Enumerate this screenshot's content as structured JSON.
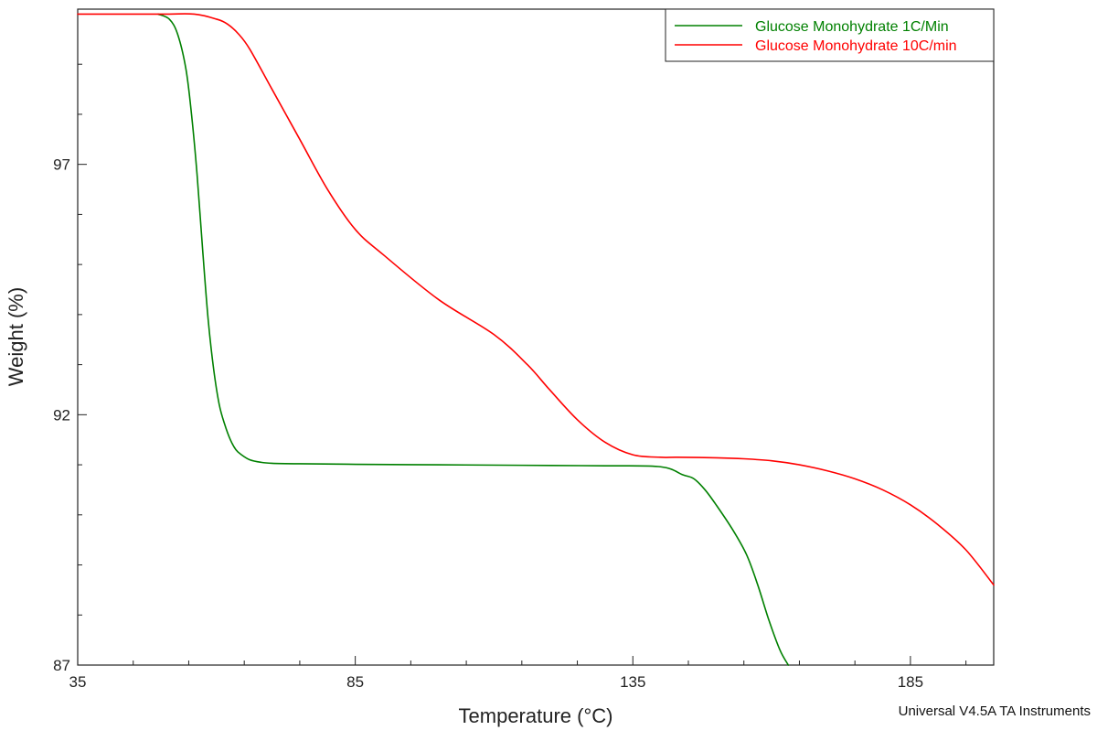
{
  "chart_data": {
    "type": "line",
    "title": "",
    "xlabel": "Temperature (°C)",
    "ylabel": "Weight (%)",
    "xlim": [
      35,
      200
    ],
    "ylim": [
      87,
      100.1
    ],
    "x_ticks": [
      35,
      85,
      135,
      185
    ],
    "x_minor_step": 10,
    "y_ticks": [
      87,
      92,
      97
    ],
    "y_minor_step": 1,
    "grid": false,
    "legend_position": "top-right",
    "series": [
      {
        "name": "Glucose Monohydrate 1C/Min",
        "color": "#008000",
        "x": [
          49.5,
          51.5,
          53,
          54.5,
          55.5,
          56.5,
          57.5,
          58.5,
          59.5,
          60.5,
          61.5,
          62.5,
          63.5,
          64.5,
          66,
          68,
          70,
          75,
          85,
          100,
          115,
          130,
          140,
          144,
          146,
          148,
          150,
          153,
          155.5,
          157.5,
          159.5,
          161.5,
          163
        ],
        "y": [
          100.0,
          99.9,
          99.6,
          98.9,
          98.0,
          96.8,
          95.3,
          93.9,
          92.9,
          92.2,
          91.8,
          91.5,
          91.3,
          91.2,
          91.1,
          91.05,
          91.03,
          91.02,
          91.01,
          91.0,
          90.99,
          90.98,
          90.96,
          90.8,
          90.72,
          90.5,
          90.2,
          89.7,
          89.2,
          88.6,
          87.9,
          87.3,
          87.0
        ]
      },
      {
        "name": "Glucose Monohydrate 10C/min",
        "color": "#ff0000",
        "x": [
          35,
          50,
          56,
          60,
          62,
          64,
          66,
          70,
          75,
          80,
          85,
          90,
          100,
          110,
          116,
          120,
          125,
          130,
          135,
          140,
          143,
          150,
          155,
          160,
          165,
          170,
          175,
          180,
          185,
          190,
          195,
          200
        ],
        "y": [
          100.0,
          100.0,
          100.0,
          99.9,
          99.8,
          99.6,
          99.3,
          98.5,
          97.5,
          96.5,
          95.7,
          95.2,
          94.3,
          93.6,
          93.0,
          92.5,
          91.9,
          91.45,
          91.2,
          91.15,
          91.15,
          91.14,
          91.12,
          91.08,
          91.0,
          90.88,
          90.72,
          90.5,
          90.2,
          89.8,
          89.3,
          88.6
        ]
      }
    ]
  },
  "footer": {
    "watermark": "Universal V4.5A TA Instruments"
  }
}
